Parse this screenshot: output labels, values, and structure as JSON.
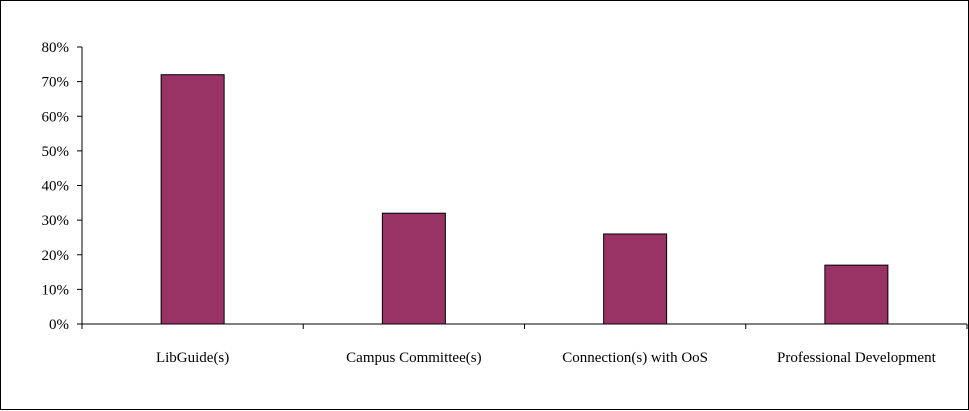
{
  "chart_data": {
    "type": "bar",
    "title": "",
    "xlabel": "",
    "ylabel": "",
    "categories": [
      "LibGuide(s)",
      "Campus Committee(s)",
      "Connection(s) with OoS",
      "Professional Development"
    ],
    "values": [
      72,
      32,
      26,
      17
    ],
    "ylim": [
      0,
      80
    ],
    "yticks": [
      0,
      10,
      20,
      30,
      40,
      50,
      60,
      70,
      80
    ],
    "ytick_labels": [
      "0%",
      "10%",
      "20%",
      "30%",
      "40%",
      "50%",
      "60%",
      "70%",
      "80%"
    ],
    "grid": false,
    "legend": "none",
    "bar_color": "#993366"
  }
}
